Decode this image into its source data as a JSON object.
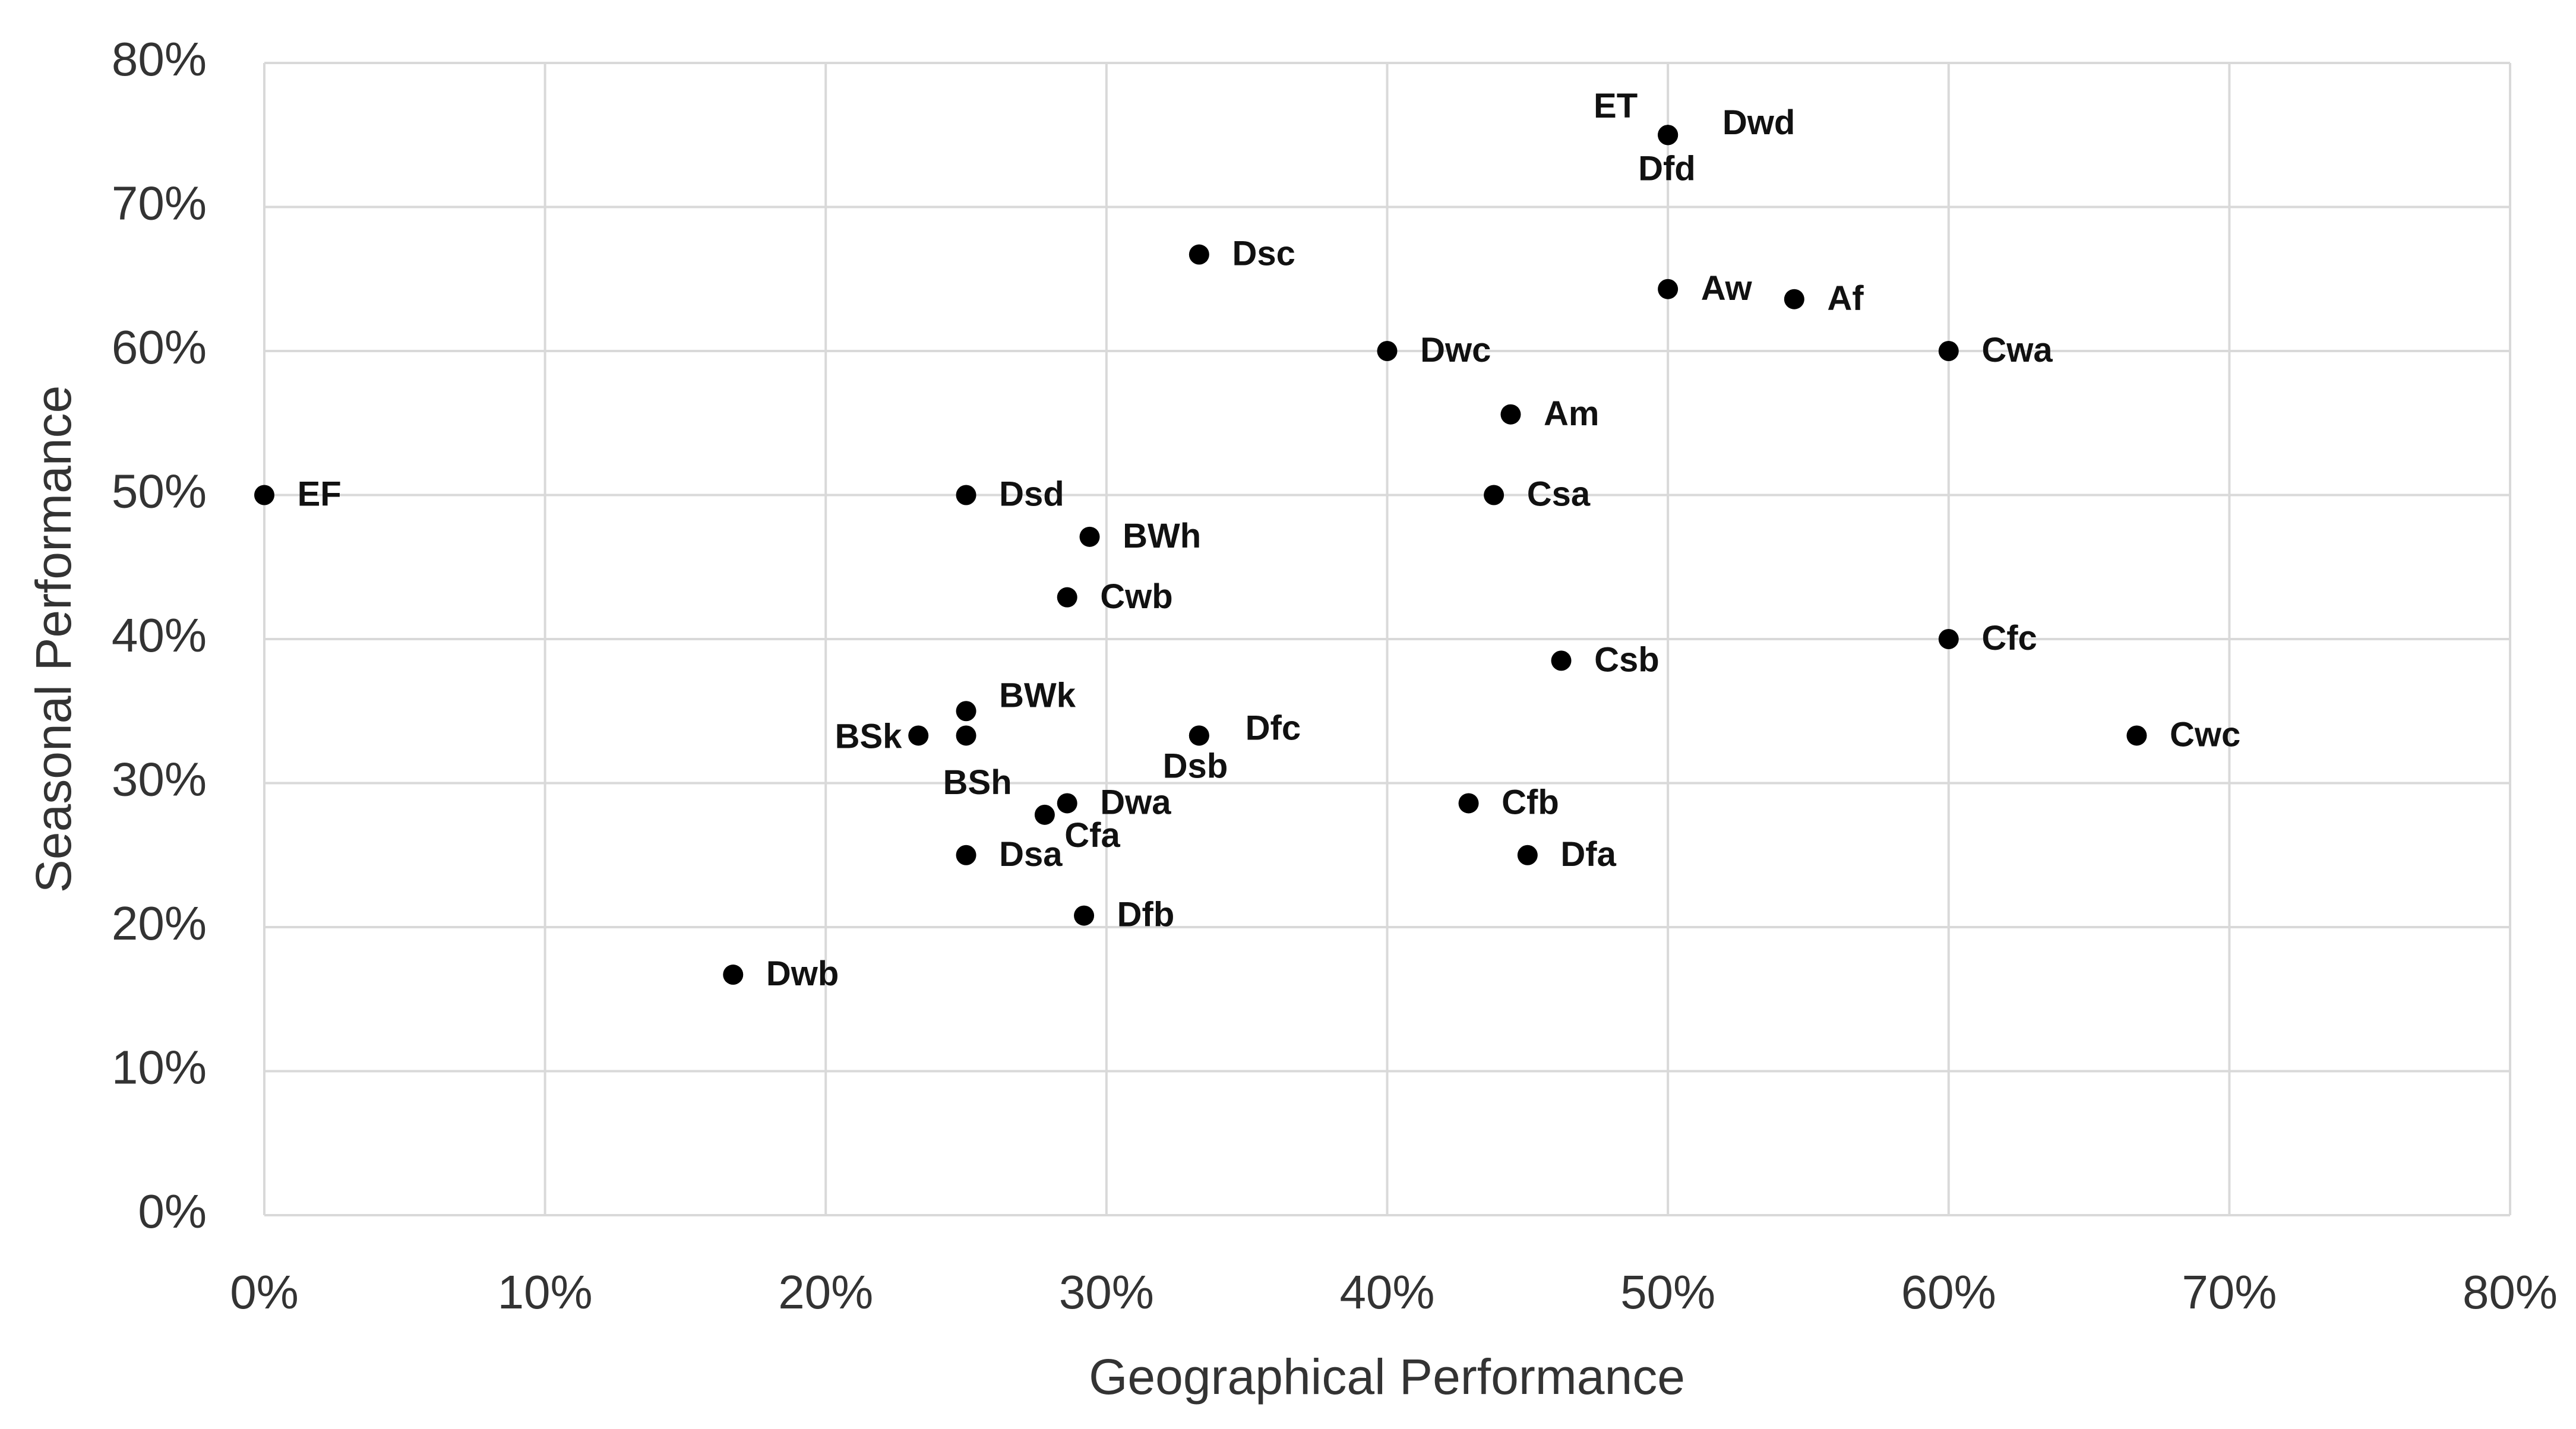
{
  "chart_data": {
    "type": "scatter",
    "x_label": "Geographical Performance",
    "y_label": "Seasonal Performance",
    "x": [
      0,
      16.7,
      23.3,
      25,
      25,
      25,
      25,
      27.8,
      28.6,
      28.6,
      29.2,
      29.4,
      33.3,
      33.3,
      33.3,
      40,
      42.9,
      43.8,
      44.4,
      45,
      46.2,
      50,
      50,
      50,
      50,
      54.5,
      60,
      60,
      66.7
    ],
    "series": [
      {
        "color": "#000000",
        "values": [
          50,
          16.7,
          33.3,
          33.3,
          35,
          50,
          25,
          27.8,
          28.6,
          42.9,
          20.8,
          47.1,
          66.7,
          33.3,
          33.3,
          60,
          28.6,
          50,
          55.6,
          25,
          38.5,
          75,
          75,
          75,
          64.3,
          63.6,
          60,
          40,
          33.3
        ],
        "point_labels": [
          "EF",
          "Dwb",
          "BSk",
          "BSh",
          "BWk",
          "Dsd",
          "Dsa",
          "Cfa",
          "Dwa",
          "Cwb",
          "Dfb",
          "BWh",
          "Dsc",
          "Dfc",
          "Dsb",
          "Dwc",
          "Cfb",
          "Csa",
          "Am",
          "Dfa",
          "Csb",
          "ET",
          "Dwd",
          "Dfd",
          "Aw",
          "Af",
          "Cwa",
          "Cfc",
          "Cwc"
        ]
      }
    ],
    "xlim": [
      0,
      80
    ],
    "ylim": [
      0,
      80
    ],
    "xticks": [
      {
        "value": 0,
        "label": "0%"
      },
      {
        "value": 10,
        "label": "10%"
      },
      {
        "value": 20,
        "label": "20%"
      },
      {
        "value": 30,
        "label": "30%"
      },
      {
        "value": 40,
        "label": "40%"
      },
      {
        "value": 50,
        "label": "50%"
      },
      {
        "value": 60,
        "label": "60%"
      },
      {
        "value": 70,
        "label": "70%"
      },
      {
        "value": 80,
        "label": "80%"
      }
    ],
    "yticks": [
      {
        "value": 0,
        "label": "0%"
      },
      {
        "value": 10,
        "label": "10%"
      },
      {
        "value": 20,
        "label": "20%"
      },
      {
        "value": 30,
        "label": "30%"
      },
      {
        "value": 40,
        "label": "40%"
      },
      {
        "value": 50,
        "label": "50%"
      },
      {
        "value": 60,
        "label": "60%"
      },
      {
        "value": 70,
        "label": "70%"
      },
      {
        "value": 80,
        "label": "80%"
      }
    ],
    "grid": true
  }
}
